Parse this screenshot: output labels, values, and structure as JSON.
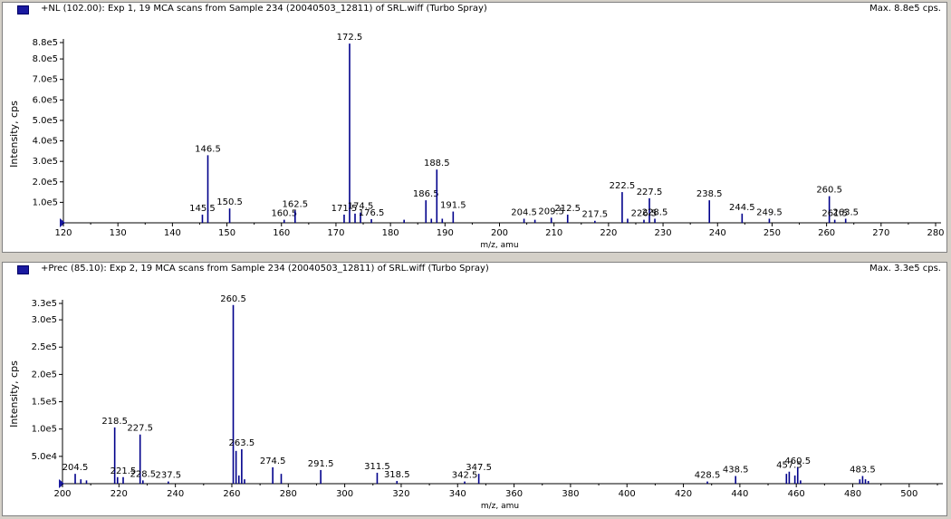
{
  "colors": {
    "bar": "#00008b",
    "axis": "#000000",
    "background": "#ffffff",
    "marker": "#1a1aa0"
  },
  "panels": [
    {
      "title": "+NL (102.00): Exp 1, 19 MCA scans from Sample 234 (20040503_12811) of SRL.wiff (Turbo Spray)",
      "max_label": "Max. 8.8e5 cps."
    },
    {
      "title": "+Prec (85.10): Exp 2, 19 MCA scans from Sample 234 (20040503_12811) of SRL.wiff (Turbo Spray)",
      "max_label": "Max. 3.3e5 cps."
    }
  ],
  "chart_data": [
    {
      "type": "bar",
      "xlabel": "m/z, amu",
      "ylabel": "Intensity, cps",
      "xlim": [
        120,
        280
      ],
      "ylim": [
        0,
        880000
      ],
      "xticks": [
        120,
        130,
        140,
        150,
        160,
        170,
        180,
        190,
        200,
        210,
        220,
        230,
        240,
        250,
        260,
        270,
        280
      ],
      "yticks": [
        {
          "value": 880000,
          "label": "8.8e5"
        },
        {
          "value": 800000,
          "label": "8.0e5"
        },
        {
          "value": 700000,
          "label": "7.0e5"
        },
        {
          "value": 600000,
          "label": "6.0e5"
        },
        {
          "value": 500000,
          "label": "5.0e5"
        },
        {
          "value": 400000,
          "label": "4.0e5"
        },
        {
          "value": 300000,
          "label": "3.0e5"
        },
        {
          "value": 200000,
          "label": "2.0e5"
        },
        {
          "value": 100000,
          "label": "1.0e5"
        }
      ],
      "peaks": [
        {
          "x": 145.5,
          "y": 40000,
          "label": "145.5"
        },
        {
          "x": 146.5,
          "y": 330000,
          "label": "146.5"
        },
        {
          "x": 150.5,
          "y": 70000,
          "label": "150.5"
        },
        {
          "x": 160.5,
          "y": 15000,
          "label": "160.5"
        },
        {
          "x": 162.5,
          "y": 60000,
          "label": "162.5"
        },
        {
          "x": 171.5,
          "y": 40000,
          "label": "171.5"
        },
        {
          "x": 172.5,
          "y": 875000,
          "label": "172.5"
        },
        {
          "x": 173.5,
          "y": 45000,
          "label": ""
        },
        {
          "x": 174.5,
          "y": 50000,
          "label": "174.5"
        },
        {
          "x": 176.5,
          "y": 18000,
          "label": "176.5"
        },
        {
          "x": 182.5,
          "y": 15000,
          "label": ""
        },
        {
          "x": 186.5,
          "y": 110000,
          "label": "186.5"
        },
        {
          "x": 187.5,
          "y": 20000,
          "label": ""
        },
        {
          "x": 188.5,
          "y": 260000,
          "label": "188.5"
        },
        {
          "x": 189.5,
          "y": 20000,
          "label": ""
        },
        {
          "x": 191.5,
          "y": 55000,
          "label": "191.5"
        },
        {
          "x": 204.5,
          "y": 20000,
          "label": "204.5"
        },
        {
          "x": 206.5,
          "y": 15000,
          "label": ""
        },
        {
          "x": 209.5,
          "y": 25000,
          "label": "209.5"
        },
        {
          "x": 212.5,
          "y": 40000,
          "label": "212.5"
        },
        {
          "x": 217.5,
          "y": 10000,
          "label": "217.5"
        },
        {
          "x": 222.5,
          "y": 150000,
          "label": "222.5"
        },
        {
          "x": 223.5,
          "y": 20000,
          "label": ""
        },
        {
          "x": 226.5,
          "y": 15000,
          "label": "226.5"
        },
        {
          "x": 227.5,
          "y": 120000,
          "label": "227.5"
        },
        {
          "x": 228.5,
          "y": 20000,
          "label": "228.5"
        },
        {
          "x": 238.5,
          "y": 110000,
          "label": "238.5"
        },
        {
          "x": 244.5,
          "y": 45000,
          "label": "244.5"
        },
        {
          "x": 249.5,
          "y": 20000,
          "label": "249.5"
        },
        {
          "x": 260.5,
          "y": 130000,
          "label": "260.5"
        },
        {
          "x": 261.5,
          "y": 15000,
          "label": "261.5"
        },
        {
          "x": 263.5,
          "y": 20000,
          "label": "263.5"
        }
      ]
    },
    {
      "type": "bar",
      "xlabel": "m/z, amu",
      "ylabel": "Intensity, cps",
      "xlim": [
        200,
        510
      ],
      "ylim": [
        0,
        330000
      ],
      "xticks": [
        200,
        220,
        240,
        260,
        280,
        300,
        320,
        340,
        360,
        380,
        400,
        420,
        440,
        460,
        480,
        500
      ],
      "yticks": [
        {
          "value": 330000,
          "label": "3.3e5"
        },
        {
          "value": 300000,
          "label": "3.0e5"
        },
        {
          "value": 250000,
          "label": "2.5e5"
        },
        {
          "value": 200000,
          "label": "2.0e5"
        },
        {
          "value": 150000,
          "label": "1.5e5"
        },
        {
          "value": 100000,
          "label": "1.0e5"
        },
        {
          "value": 50000,
          "label": "5.0e4"
        }
      ],
      "peaks": [
        {
          "x": 204.5,
          "y": 18000,
          "label": "204.5"
        },
        {
          "x": 206.5,
          "y": 8000,
          "label": ""
        },
        {
          "x": 208.5,
          "y": 6000,
          "label": ""
        },
        {
          "x": 218.5,
          "y": 103000,
          "label": "218.5"
        },
        {
          "x": 219.5,
          "y": 12000,
          "label": ""
        },
        {
          "x": 221.5,
          "y": 12000,
          "label": "221.5"
        },
        {
          "x": 227.5,
          "y": 90000,
          "label": "227.5"
        },
        {
          "x": 228.5,
          "y": 6000,
          "label": "228.5"
        },
        {
          "x": 237.5,
          "y": 4000,
          "label": "237.5"
        },
        {
          "x": 260.5,
          "y": 327000,
          "label": "260.5"
        },
        {
          "x": 261.5,
          "y": 60000,
          "label": ""
        },
        {
          "x": 262.5,
          "y": 15000,
          "label": ""
        },
        {
          "x": 263.5,
          "y": 63000,
          "label": "263.5"
        },
        {
          "x": 264.5,
          "y": 8000,
          "label": ""
        },
        {
          "x": 274.5,
          "y": 30000,
          "label": "274.5"
        },
        {
          "x": 277.5,
          "y": 18000,
          "label": ""
        },
        {
          "x": 291.5,
          "y": 25000,
          "label": "291.5"
        },
        {
          "x": 311.5,
          "y": 20000,
          "label": "311.5"
        },
        {
          "x": 318.5,
          "y": 5000,
          "label": "318.5"
        },
        {
          "x": 342.5,
          "y": 4000,
          "label": "342.5"
        },
        {
          "x": 347.5,
          "y": 18000,
          "label": "347.5"
        },
        {
          "x": 428.5,
          "y": 4000,
          "label": "428.5"
        },
        {
          "x": 438.5,
          "y": 14000,
          "label": "438.5"
        },
        {
          "x": 456.5,
          "y": 18000,
          "label": ""
        },
        {
          "x": 457.5,
          "y": 22000,
          "label": "457.5"
        },
        {
          "x": 459.5,
          "y": 15000,
          "label": ""
        },
        {
          "x": 460.5,
          "y": 30000,
          "label": "460.5"
        },
        {
          "x": 461.5,
          "y": 6000,
          "label": ""
        },
        {
          "x": 482.5,
          "y": 8000,
          "label": ""
        },
        {
          "x": 483.5,
          "y": 14000,
          "label": "483.5"
        },
        {
          "x": 484.5,
          "y": 8000,
          "label": ""
        },
        {
          "x": 485.5,
          "y": 5000,
          "label": ""
        }
      ]
    }
  ]
}
